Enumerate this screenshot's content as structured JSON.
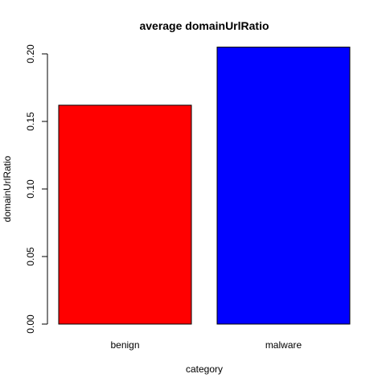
{
  "chart_data": {
    "type": "bar",
    "title": "average domainUrlRatio",
    "xlabel": "category",
    "ylabel": "domainUrlRatio",
    "categories": [
      "benign",
      "malware"
    ],
    "values": [
      0.162,
      0.205
    ],
    "colors": [
      "#ff0000",
      "#0000ff"
    ],
    "ylim": [
      0,
      0.2
    ],
    "yticks": [
      "0.00",
      "0.05",
      "0.10",
      "0.15",
      "0.20"
    ],
    "grid": false,
    "legend": "none"
  }
}
